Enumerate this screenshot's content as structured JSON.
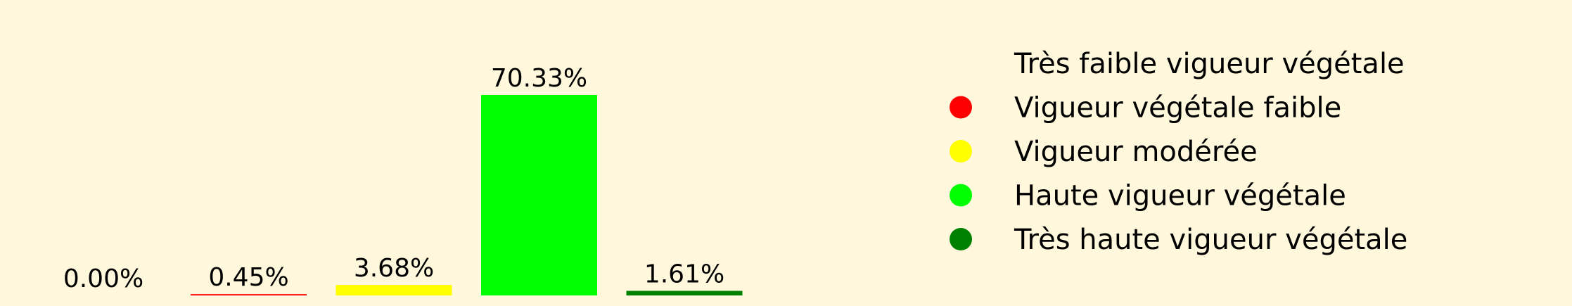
{
  "chart_data": {
    "type": "bar",
    "categories": [
      "Très faible vigueur végétale",
      "Vigueur végétale faible",
      "Vigueur modérée",
      "Haute vigueur végétale",
      "Très haute vigueur végétale"
    ],
    "values": [
      0.0,
      0.45,
      3.68,
      70.33,
      1.61
    ],
    "value_labels": [
      "0.00%",
      "0.45%",
      "3.68%",
      "70.33%",
      "1.61%"
    ],
    "colors": [
      "#fff8dc",
      "#ff0000",
      "#ffff00",
      "#00ff00",
      "#008000"
    ],
    "ylim": [
      0,
      70.33
    ],
    "grid": false,
    "legend": {
      "placement": "right",
      "entries": [
        {
          "label": "Très faible vigueur végétale",
          "color": "#fff8dc"
        },
        {
          "label": "Vigueur végétale faible",
          "color": "#ff0000"
        },
        {
          "label": "Vigueur modérée",
          "color": "#ffff00"
        },
        {
          "label": "Haute vigueur végétale",
          "color": "#00ff00"
        },
        {
          "label": "Très haute vigueur végétale",
          "color": "#008000"
        }
      ]
    }
  }
}
